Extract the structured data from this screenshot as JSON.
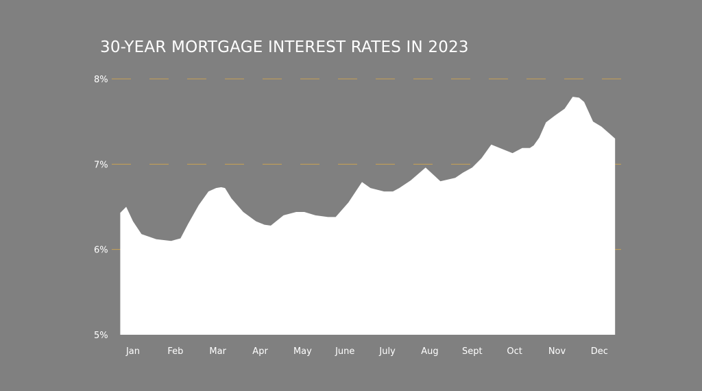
{
  "chart_data": {
    "type": "area",
    "title": "30-YEAR MORTGAGE INTEREST RATES IN 2023",
    "xlabel": "",
    "ylabel": "",
    "ylim": [
      5,
      8
    ],
    "xlim": [
      0,
      11.37
    ],
    "y_ticks": [
      {
        "value": 8,
        "label": "8%"
      },
      {
        "value": 7,
        "label": "7%"
      },
      {
        "value": 6,
        "label": "6%"
      },
      {
        "value": 5,
        "label": "5%"
      }
    ],
    "categories": [
      "Jan",
      "Feb",
      "Mar",
      "Apr",
      "May",
      "June",
      "July",
      "Aug",
      "Sept",
      "Oct",
      "Nov",
      "Dec"
    ],
    "grid": true,
    "colors": {
      "background": "#808080",
      "area": "#ffffff",
      "grid": "#c9a253",
      "text": "#ffffff"
    },
    "series": [
      {
        "x": [
          -0.3,
          -0.16,
          0.0,
          0.2,
          0.55,
          0.9,
          1.12,
          1.3,
          1.55,
          1.78,
          1.96,
          2.08,
          2.17,
          2.32,
          2.6,
          2.9,
          3.0,
          3.1,
          3.25,
          3.55,
          3.85,
          4.04,
          4.3,
          4.6,
          4.78,
          5.08,
          5.4,
          5.6,
          5.76,
          5.92,
          6.13,
          6.28,
          6.55,
          6.9,
          7.25,
          7.6,
          7.78,
          8.0,
          8.22,
          8.45,
          8.7,
          8.95,
          9.18,
          9.36,
          9.45,
          9.58,
          9.74,
          9.95,
          10.18,
          10.37,
          10.52,
          10.64,
          10.85,
          11.05,
          11.37
        ],
        "y": [
          6.43,
          6.5,
          6.33,
          6.18,
          6.12,
          6.1,
          6.13,
          6.3,
          6.52,
          6.68,
          6.72,
          6.73,
          6.72,
          6.6,
          6.44,
          6.33,
          6.31,
          6.29,
          6.28,
          6.4,
          6.44,
          6.44,
          6.4,
          6.38,
          6.38,
          6.55,
          6.79,
          6.72,
          6.7,
          6.68,
          6.68,
          6.72,
          6.81,
          6.96,
          6.8,
          6.84,
          6.9,
          6.96,
          7.07,
          7.23,
          7.18,
          7.13,
          7.19,
          7.19,
          7.22,
          7.31,
          7.49,
          7.57,
          7.65,
          7.79,
          7.78,
          7.73,
          7.5,
          7.44,
          7.3
        ]
      }
    ]
  }
}
